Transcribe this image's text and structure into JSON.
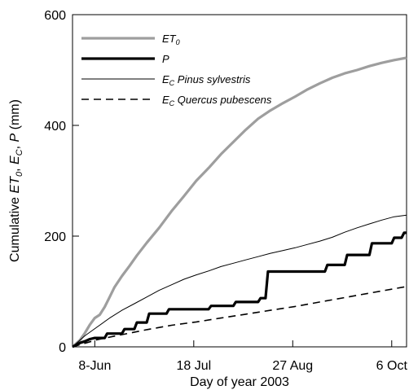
{
  "chart_data": {
    "type": "line",
    "xlabel": "Day of year 2003",
    "ylabel": {
      "prefix": "Cumulative ",
      "et": "ET",
      "et_sub": "0",
      "sep1": ", ",
      "e": "E",
      "e_sub": "C",
      "sep2": ", ",
      "p": "P",
      "unit": " (mm)"
    },
    "xlim": [
      150,
      285
    ],
    "ylim": [
      0,
      600
    ],
    "x_ticks": [
      {
        "value": 159,
        "label": "8-Jun"
      },
      {
        "value": 199,
        "label": "18 Jul"
      },
      {
        "value": 239,
        "label": "27 Aug"
      },
      {
        "value": 279,
        "label": "6 Oct"
      }
    ],
    "y_ticks": [
      {
        "value": 0,
        "label": "0"
      },
      {
        "value": 200,
        "label": "200"
      },
      {
        "value": 400,
        "label": "400"
      },
      {
        "value": 600,
        "label": "600"
      }
    ],
    "legend_position": "top-left",
    "series": [
      {
        "key": "et0",
        "name": "ET",
        "name_sub": "0",
        "name_rest": "",
        "color": "#9e9e9e",
        "dash": "",
        "width": 3.2,
        "x": [
          150,
          153,
          155,
          157,
          159,
          161,
          163,
          165,
          167,
          170,
          173,
          176,
          180,
          185,
          190,
          195,
          200,
          205,
          210,
          215,
          220,
          225,
          230,
          235,
          240,
          245,
          250,
          255,
          260,
          265,
          270,
          275,
          280,
          285
        ],
        "y": [
          0,
          12,
          25,
          40,
          52,
          58,
          72,
          90,
          108,
          128,
          146,
          165,
          188,
          215,
          245,
          272,
          300,
          323,
          348,
          370,
          392,
          412,
          427,
          440,
          452,
          465,
          476,
          486,
          494,
          500,
          507,
          513,
          518,
          522
        ]
      },
      {
        "key": "p",
        "name": "P",
        "name_sub": "",
        "name_rest": "",
        "color": "#000000",
        "dash": "",
        "width": 3.2,
        "x": [
          150,
          153,
          155,
          157,
          159,
          163,
          164,
          170,
          171,
          175,
          176,
          180,
          181,
          188,
          189,
          205,
          206,
          215,
          216,
          225,
          226,
          228,
          229,
          252,
          253,
          260,
          261,
          270,
          271,
          279,
          280,
          283,
          284,
          285
        ],
        "y": [
          0,
          7,
          10,
          14,
          16,
          16,
          24,
          24,
          32,
          32,
          44,
          44,
          60,
          60,
          68,
          68,
          74,
          74,
          81,
          81,
          88,
          88,
          136,
          136,
          148,
          148,
          166,
          166,
          187,
          187,
          197,
          197,
          206,
          206
        ]
      },
      {
        "key": "ec_pinus",
        "name": "E",
        "name_sub": "C",
        "name_rest": " Pinus sylvestris",
        "color": "#000000",
        "dash": "",
        "width": 1,
        "x": [
          150,
          155,
          160,
          165,
          170,
          175,
          180,
          185,
          190,
          195,
          200,
          205,
          210,
          215,
          220,
          225,
          230,
          235,
          240,
          245,
          250,
          255,
          260,
          265,
          270,
          275,
          280,
          285
        ],
        "y": [
          0,
          20,
          36,
          52,
          66,
          78,
          90,
          102,
          112,
          122,
          130,
          137,
          145,
          151,
          157,
          163,
          169,
          174,
          179,
          185,
          191,
          198,
          207,
          215,
          222,
          229,
          235,
          238
        ]
      },
      {
        "key": "ec_quercus",
        "name": "E",
        "name_sub": "C",
        "name_rest": " Quercus pubescens",
        "color": "#000000",
        "dash": "9,6",
        "width": 1.6,
        "x": [
          150,
          160,
          170,
          180,
          190,
          200,
          210,
          220,
          230,
          240,
          250,
          260,
          270,
          280,
          285
        ],
        "y": [
          0,
          13,
          22,
          31,
          39,
          45,
          52,
          59,
          66,
          73,
          81,
          89,
          97,
          105,
          109
        ]
      }
    ]
  }
}
